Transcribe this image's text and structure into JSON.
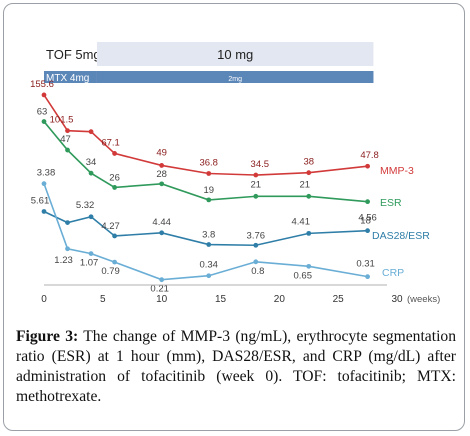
{
  "chart_data": {
    "type": "line",
    "xlabel": "",
    "x_unit": "(weeks)",
    "xlim": [
      0,
      30
    ],
    "x_ticks": [
      0,
      5,
      10,
      15,
      20,
      25,
      30
    ],
    "x_tick_labels": [
      "0",
      "5",
      "10",
      "15",
      "20",
      "25",
      "30"
    ],
    "treatment_bars": [
      {
        "label": "TOF 5mg",
        "x_start": 0,
        "x_end": 4.5,
        "color": "#ffffff"
      },
      {
        "label": "10 mg",
        "x_start": 4.5,
        "x_end": 28,
        "color": "#e3e7f1"
      },
      {
        "label": "MTX 4mg",
        "x_start": 0,
        "x_end": 4.5,
        "color": "#5b86b8"
      },
      {
        "label": "2mg",
        "x_start": 4.5,
        "x_end": 28,
        "color": "#5b86b8"
      }
    ],
    "series": [
      {
        "name": "MMP-3",
        "color": "#d23a3a",
        "x": [
          0,
          2,
          4,
          6,
          10,
          14,
          18,
          22.5,
          27.5
        ],
        "values": [
          155.6,
          101.5,
          100,
          67.1,
          49,
          36.8,
          34.5,
          38,
          47.8
        ],
        "labels": [
          "155.6",
          "101.5",
          "",
          "67.1",
          "49",
          "36.8",
          "34.5",
          "38",
          "47.8"
        ]
      },
      {
        "name": "ESR",
        "color": "#2f9a5b",
        "x": [
          0,
          2,
          4,
          6,
          10,
          14,
          18,
          22.5,
          27.5
        ],
        "values": [
          63,
          47,
          34,
          26,
          28,
          19,
          21,
          21,
          18
        ],
        "labels": [
          "63",
          "47",
          "34",
          "26",
          "28",
          "19",
          "21",
          "21",
          "18"
        ]
      },
      {
        "name": "DAS28/ESR",
        "color": "#2f7ea8",
        "x": [
          0,
          2,
          4,
          6,
          10,
          14,
          18,
          22.5,
          27.5
        ],
        "values": [
          5.61,
          5.0,
          5.32,
          4.27,
          4.44,
          3.8,
          3.76,
          4.41,
          4.56
        ],
        "labels": [
          "5.61",
          "",
          "5.32",
          "4.27",
          "4.44",
          "3.8",
          "3.76",
          "4.41",
          "4.56"
        ]
      },
      {
        "name": "CRP",
        "color": "#6aaed6",
        "x": [
          0,
          2,
          4,
          6,
          10,
          14,
          18,
          22.5,
          27.5
        ],
        "values": [
          3.38,
          1.23,
          1.07,
          0.79,
          0.21,
          0.34,
          0.8,
          0.65,
          0.31
        ],
        "labels": [
          "3.38",
          "1.23",
          "1.07",
          "0.79",
          "0.21",
          "0.34",
          "0.8",
          "0.65",
          "0.31"
        ]
      }
    ],
    "legend_placement": "right, beside line ends",
    "grid": false
  },
  "caption": {
    "label": "Figure 3:",
    "text": "The change of MMP-3 (ng/mL), erythrocyte segmentation ratio (ESR) at 1 hour (mm), DAS28/ESR, and CRP (mg/dL) after administration of tofacitinib (week 0). TOF: tofacitinib; MTX: methotrexate."
  }
}
